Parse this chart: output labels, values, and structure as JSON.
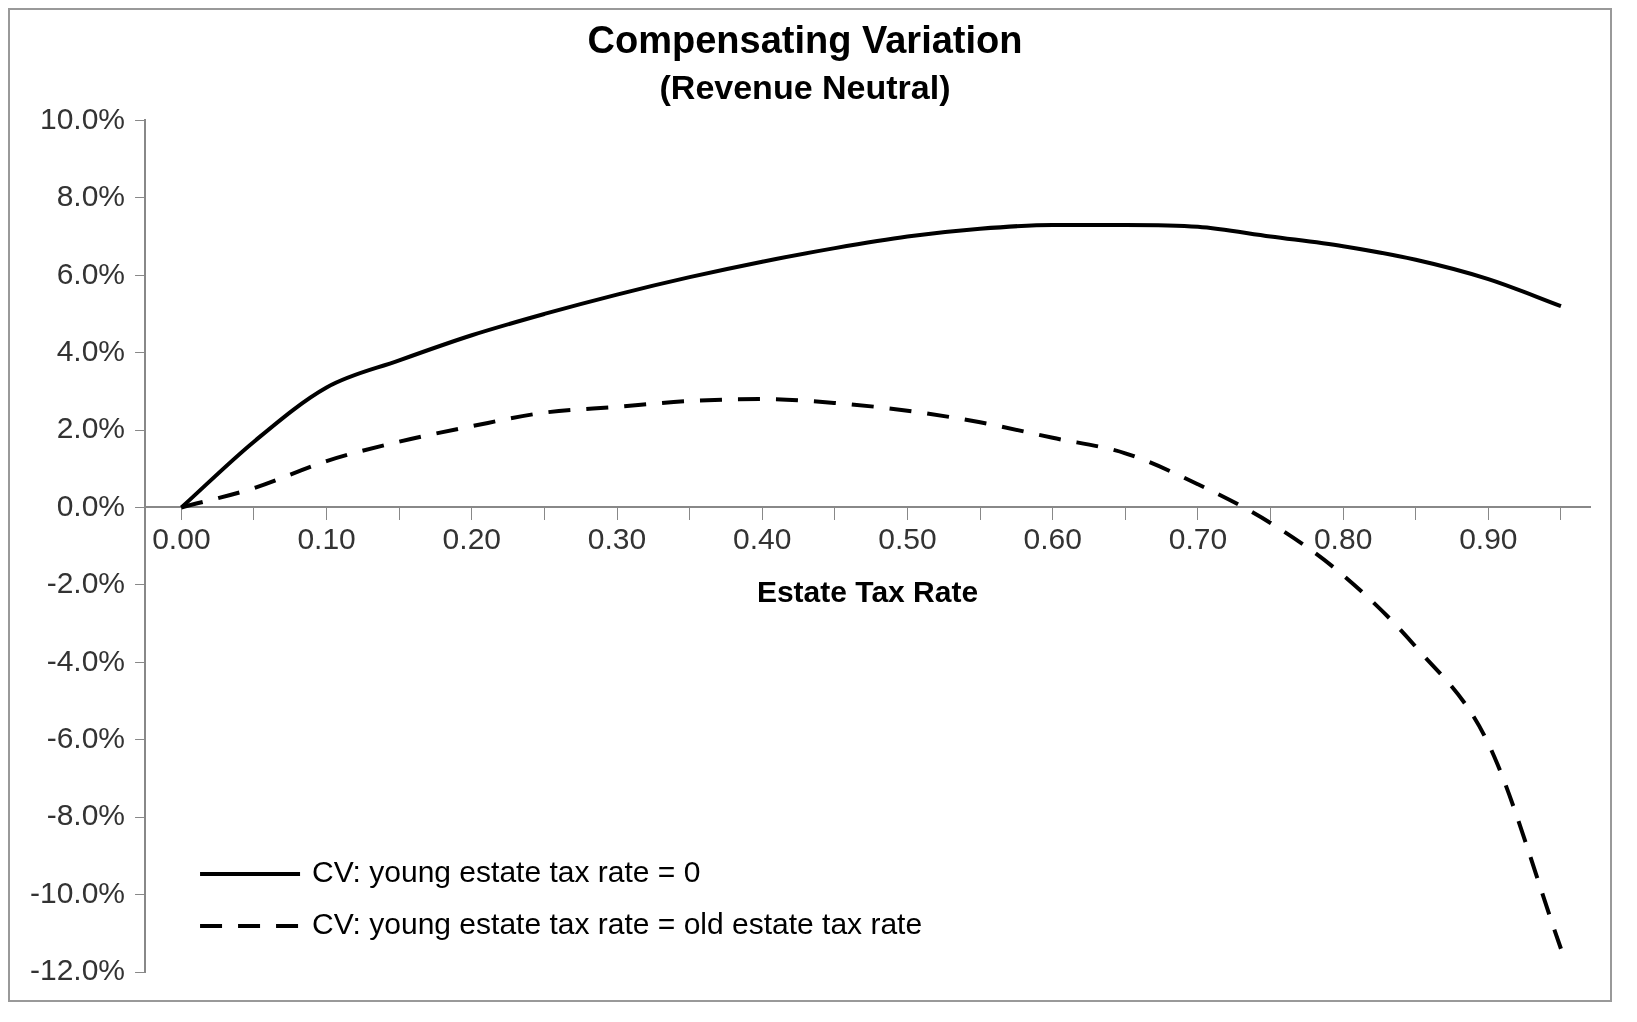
{
  "chart_data": {
    "type": "line",
    "title": "Compensating Variation",
    "subtitle": "(Revenue Neutral)",
    "xlabel": "Estate Tax Rate",
    "x": [
      0,
      0.05,
      0.1,
      0.15,
      0.2,
      0.25,
      0.3,
      0.35,
      0.4,
      0.45,
      0.5,
      0.55,
      0.6,
      0.65,
      0.7,
      0.75,
      0.8,
      0.85,
      0.9,
      0.95
    ],
    "series": [
      {
        "name": "CV: young estate tax rate = 0",
        "color": "#000000",
        "line_style": "solid",
        "values": [
          0,
          1.7,
          3.1,
          3.8,
          4.45,
          5.0,
          5.5,
          5.95,
          6.35,
          6.7,
          7.0,
          7.2,
          7.3,
          7.3,
          7.25,
          7.0,
          6.75,
          6.4,
          5.9,
          5.2
        ]
      },
      {
        "name": "CV: young estate tax rate = old estate tax rate",
        "color": "#000000",
        "line_style": "dashed",
        "values": [
          0,
          0.5,
          1.2,
          1.7,
          2.1,
          2.45,
          2.6,
          2.75,
          2.8,
          2.7,
          2.5,
          2.2,
          1.8,
          1.4,
          0.6,
          -0.4,
          -1.75,
          -3.6,
          -6.1,
          -11.4
        ]
      }
    ],
    "xlim": [
      -0.025,
      0.97
    ],
    "xticks": [
      {
        "value": 0,
        "label": "0.00"
      },
      {
        "value": 0.05,
        "label": null
      },
      {
        "value": 0.1,
        "label": "0.10"
      },
      {
        "value": 0.15,
        "label": null
      },
      {
        "value": 0.2,
        "label": "0.20"
      },
      {
        "value": 0.25,
        "label": null
      },
      {
        "value": 0.3,
        "label": "0.30"
      },
      {
        "value": 0.35,
        "label": null
      },
      {
        "value": 0.4,
        "label": "0.40"
      },
      {
        "value": 0.45,
        "label": null
      },
      {
        "value": 0.5,
        "label": "0.50"
      },
      {
        "value": 0.55,
        "label": null
      },
      {
        "value": 0.6,
        "label": "0.60"
      },
      {
        "value": 0.65,
        "label": null
      },
      {
        "value": 0.7,
        "label": "0.70"
      },
      {
        "value": 0.75,
        "label": null
      },
      {
        "value": 0.8,
        "label": "0.80"
      },
      {
        "value": 0.85,
        "label": null
      },
      {
        "value": 0.9,
        "label": "0.90"
      },
      {
        "value": 0.95,
        "label": null
      }
    ],
    "ylim": [
      -12,
      10
    ],
    "yticks": [
      {
        "value": -12,
        "label": "-12.0%"
      },
      {
        "value": -10,
        "label": "-10.0%"
      },
      {
        "value": -8,
        "label": "-8.0%"
      },
      {
        "value": -6,
        "label": "-6.0%"
      },
      {
        "value": -4,
        "label": "-4.0%"
      },
      {
        "value": -2,
        "label": "-2.0%"
      },
      {
        "value": 0,
        "label": "0.0%"
      },
      {
        "value": 2,
        "label": "2.0%"
      },
      {
        "value": 4,
        "label": "4.0%"
      },
      {
        "value": 6,
        "label": "6.0%"
      },
      {
        "value": 8,
        "label": "8.0%"
      },
      {
        "value": 10,
        "label": "10.0%"
      }
    ],
    "grid": false,
    "legend": "bottom left",
    "marker": "none"
  }
}
